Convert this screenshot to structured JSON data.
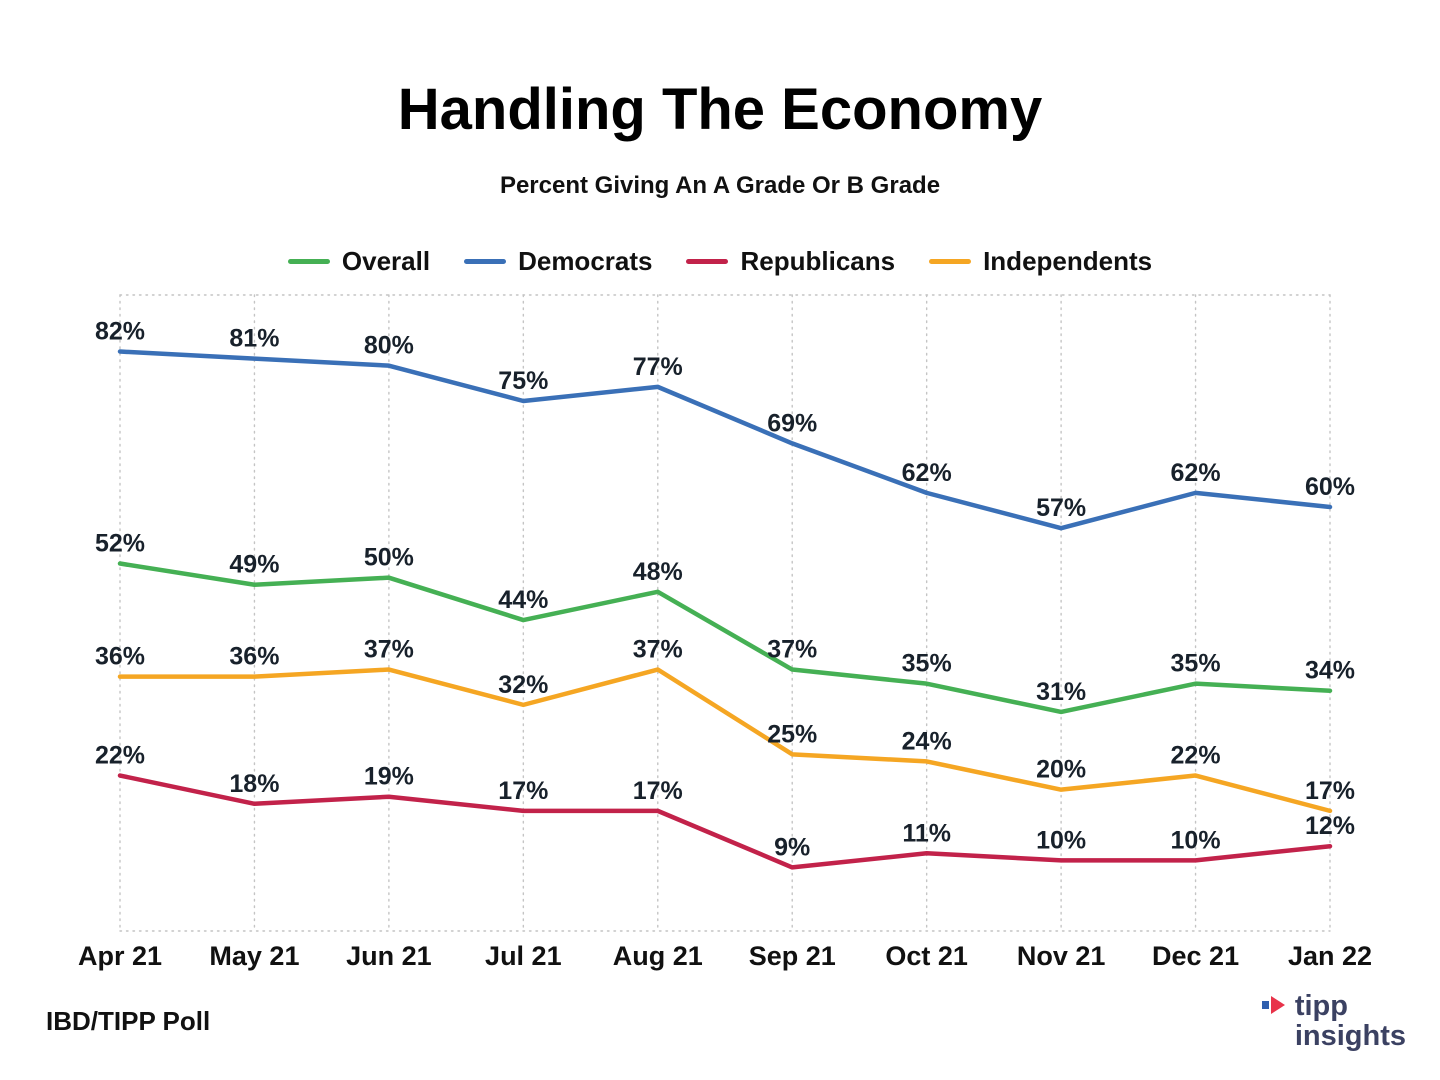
{
  "header": {
    "title": "Handling The Economy",
    "subtitle": "Percent Giving An A Grade Or B Grade"
  },
  "footer": {
    "source": "IBD/TIPP Poll",
    "logo_top": "tipp",
    "logo_bottom": "insights"
  },
  "chart_data": {
    "type": "line",
    "title": "Handling The Economy",
    "subtitle": "Percent Giving An A Grade Or B Grade",
    "categories": [
      "Apr 21",
      "May 21",
      "Jun 21",
      "Jul 21",
      "Aug 21",
      "Sep 21",
      "Oct 21",
      "Nov 21",
      "Dec 21",
      "Jan 22"
    ],
    "series": [
      {
        "name": "Overall",
        "color": "#45b054",
        "values": [
          52,
          49,
          50,
          44,
          48,
          37,
          35,
          31,
          35,
          34
        ]
      },
      {
        "name": "Democrats",
        "color": "#3a70b7",
        "values": [
          82,
          81,
          80,
          75,
          77,
          69,
          62,
          57,
          62,
          60
        ]
      },
      {
        "name": "Republicans",
        "color": "#c2224a",
        "values": [
          22,
          18,
          19,
          17,
          17,
          9,
          11,
          10,
          10,
          12
        ]
      },
      {
        "name": "Independents",
        "color": "#f5a623",
        "values": [
          36,
          36,
          37,
          32,
          37,
          25,
          24,
          20,
          22,
          17
        ]
      }
    ],
    "ylim": [
      0,
      90
    ],
    "grid": "vertical-dotted",
    "legend_position": "top",
    "label_format": "{v}%",
    "label_color": "#18212b",
    "grid_color": "#c4c4c4"
  }
}
